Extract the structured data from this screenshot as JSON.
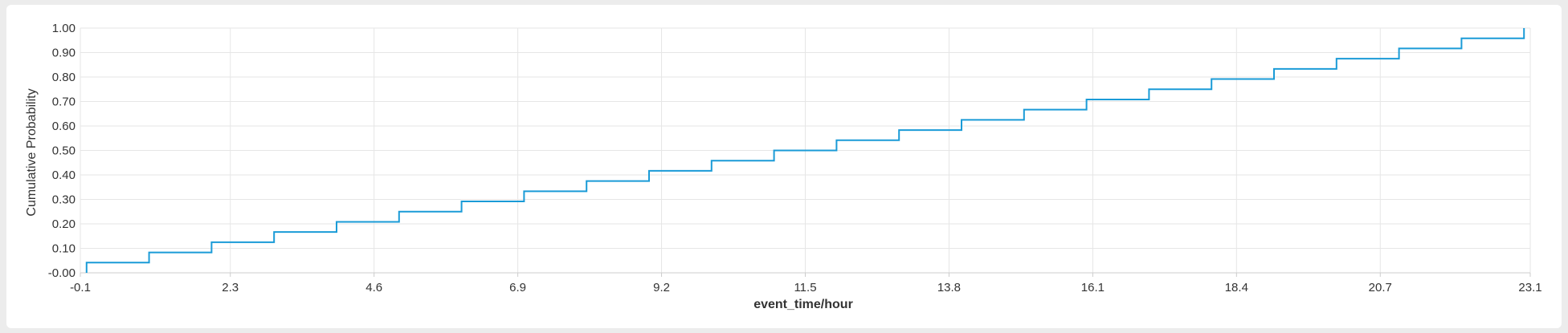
{
  "chart_data": {
    "type": "line",
    "step": true,
    "title": "",
    "xlabel": "event_time/hour",
    "ylabel": "Cumulative Probability",
    "xlim": [
      -0.1,
      23.1
    ],
    "ylim": [
      0.0,
      1.0
    ],
    "x_ticks": [
      -0.1,
      2.3,
      4.6,
      6.9,
      9.2,
      11.5,
      13.8,
      16.1,
      18.4,
      20.7,
      23.1
    ],
    "x_tick_labels": [
      "-0.1",
      "2.3",
      "4.6",
      "6.9",
      "9.2",
      "11.5",
      "13.8",
      "16.1",
      "18.4",
      "20.7",
      "23.1"
    ],
    "y_ticks": [
      0.0,
      0.1,
      0.2,
      0.3,
      0.4,
      0.5,
      0.6,
      0.7,
      0.8,
      0.9,
      1.0
    ],
    "y_tick_labels": [
      "-0.00",
      "0.10",
      "0.20",
      "0.30",
      "0.40",
      "0.50",
      "0.60",
      "0.70",
      "0.80",
      "0.90",
      "1.00"
    ],
    "grid": true,
    "legend": "none",
    "series": [
      {
        "x": [
          0,
          1,
          2,
          3,
          4,
          5,
          6,
          7,
          8,
          9,
          10,
          11,
          12,
          13,
          14,
          15,
          16,
          17,
          18,
          19,
          20,
          21,
          22,
          23
        ],
        "y": [
          0.042,
          0.083,
          0.125,
          0.167,
          0.208,
          0.25,
          0.292,
          0.333,
          0.375,
          0.417,
          0.458,
          0.5,
          0.542,
          0.583,
          0.625,
          0.667,
          0.708,
          0.75,
          0.792,
          0.833,
          0.875,
          0.917,
          0.958,
          1.0
        ]
      }
    ],
    "colors": {
      "line": "#1a9bd7",
      "grid": "#e6e6e6",
      "axis": "#cccccc",
      "text": "#333333"
    }
  }
}
